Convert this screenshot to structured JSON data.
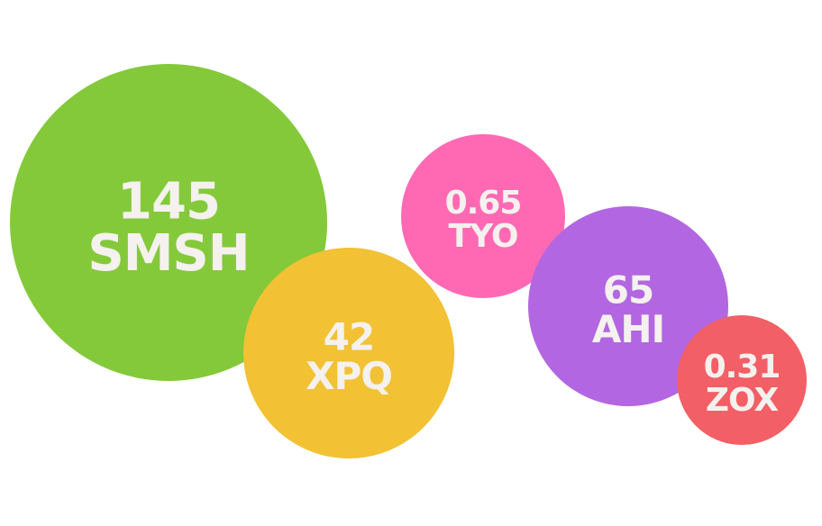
{
  "chart_data": {
    "type": "bubble",
    "title": "",
    "bubbles": [
      {
        "label": "SMSH",
        "value": "145",
        "size_value": 145,
        "color": "#84c93a"
      },
      {
        "label": "XPQ",
        "value": "42",
        "size_value": 42,
        "color": "#f2c134"
      },
      {
        "label": "TYO",
        "value": "0.65",
        "size_value": 0.65,
        "color": "#ff69b4"
      },
      {
        "label": "AHI",
        "value": "65",
        "size_value": 65,
        "color": "#b366e2"
      },
      {
        "label": "ZOX",
        "value": "0.31",
        "size_value": 0.31,
        "color": "#f25f66"
      }
    ],
    "text_color": "#f4f1ee"
  }
}
